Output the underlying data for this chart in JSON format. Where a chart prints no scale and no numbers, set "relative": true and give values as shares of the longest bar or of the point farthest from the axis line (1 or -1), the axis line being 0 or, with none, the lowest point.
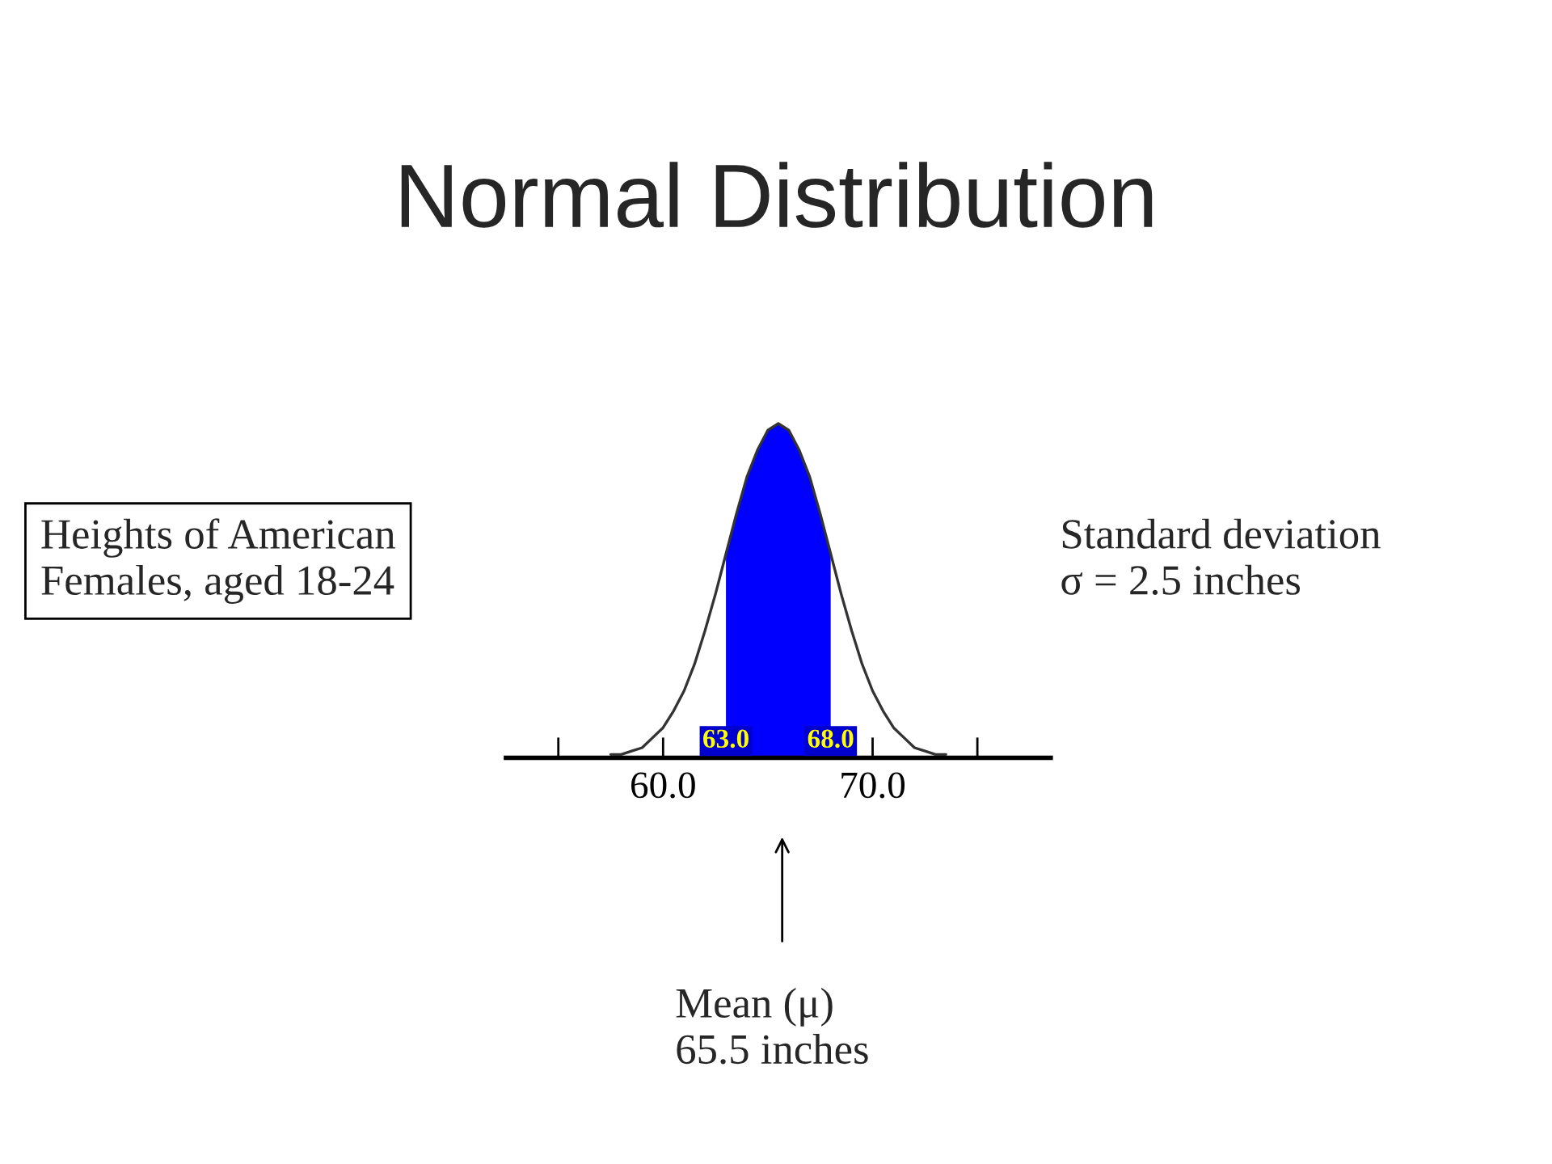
{
  "chart_data": {
    "type": "line",
    "title": "Normal Distribution",
    "relative": true,
    "xlim": [
      52.5,
      78.5
    ],
    "xticks": [
      {
        "value": 55,
        "label": null
      },
      {
        "value": 60,
        "label": "60.0"
      },
      {
        "value": 70,
        "label": "70.0"
      },
      {
        "value": 75,
        "label": null
      }
    ],
    "series": [
      {
        "type": "area",
        "color": "#0000ff",
        "x": [
          63,
          63.5,
          64,
          64.5,
          65,
          65.5,
          66,
          66.5,
          67,
          67.5,
          68
        ],
        "values": [
          0.61,
          0.73,
          0.84,
          0.92,
          0.98,
          1,
          0.98,
          0.92,
          0.84,
          0.73,
          0.61
        ]
      },
      {
        "color": "#333333",
        "x": [
          57.5,
          58,
          58.5,
          59,
          59.5,
          60,
          60.5,
          61,
          61.5,
          62,
          62.5,
          63,
          63.5,
          64,
          64.5,
          65,
          65.5,
          66,
          66.5,
          67,
          67.5,
          68,
          68.5,
          69,
          69.5,
          70,
          70.5,
          71,
          71.5,
          72,
          72.5,
          73,
          73.5
        ],
        "values": [
          0.01,
          0.01,
          0.02,
          0.03,
          0.06,
          0.09,
          0.14,
          0.2,
          0.28,
          0.38,
          0.49,
          0.61,
          0.73,
          0.84,
          0.92,
          0.98,
          1,
          0.98,
          0.92,
          0.84,
          0.73,
          0.61,
          0.49,
          0.38,
          0.28,
          0.2,
          0.14,
          0.09,
          0.06,
          0.03,
          0.02,
          0.01,
          0.01
        ]
      }
    ],
    "annotations": [
      "Heights of American\nFemales, aged 18-24",
      "Standard deviation\nσ = 2.5 inches",
      "Mean (μ)\n65.5 inches",
      {
        "text": "63.0",
        "x": 63,
        "y": 0
      },
      {
        "text": "68.0",
        "x": 68,
        "y": 0
      }
    ],
    "grid": false,
    "legend": false
  }
}
